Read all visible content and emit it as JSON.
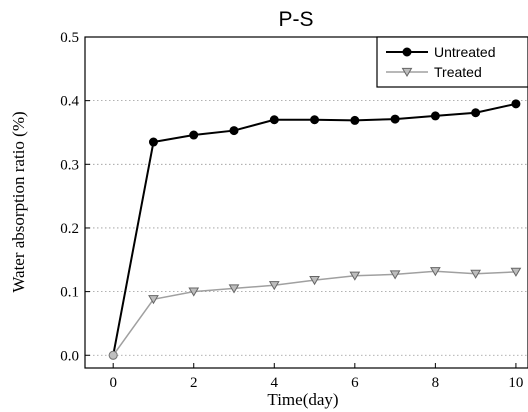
{
  "chart_data": {
    "type": "line",
    "title": "P-S",
    "xlabel": "Time(day)",
    "ylabel": "Water absorption ratio (%)",
    "xlim": [
      -0.7,
      10.3
    ],
    "ylim": [
      -0.02,
      0.5
    ],
    "xticks": [
      0,
      2,
      4,
      6,
      8,
      10
    ],
    "yticks": [
      0.0,
      0.1,
      0.2,
      0.3,
      0.4,
      0.5
    ],
    "x_tick_labels": [
      "0",
      "2",
      "4",
      "6",
      "8",
      "10"
    ],
    "y_tick_labels": [
      "0.0",
      "0.1",
      "0.2",
      "0.3",
      "0.4",
      "0.5"
    ],
    "grid": "horizontal dotted",
    "legend_position": "top-right",
    "series": [
      {
        "name": "Untreated",
        "color": "#000000",
        "marker": "circle",
        "x": [
          0,
          1,
          2,
          3,
          4,
          5,
          6,
          7,
          8,
          9,
          10
        ],
        "y": [
          0.0,
          0.335,
          0.346,
          0.353,
          0.37,
          0.37,
          0.369,
          0.371,
          0.376,
          0.381,
          0.395
        ]
      },
      {
        "name": "Treated",
        "color": "#a0a0a0",
        "marker": "triangle-down",
        "x": [
          0,
          1,
          2,
          3,
          4,
          5,
          6,
          7,
          8,
          9,
          10
        ],
        "y": [
          0.0,
          0.088,
          0.1,
          0.105,
          0.11,
          0.118,
          0.125,
          0.127,
          0.132,
          0.128,
          0.131
        ]
      }
    ]
  }
}
